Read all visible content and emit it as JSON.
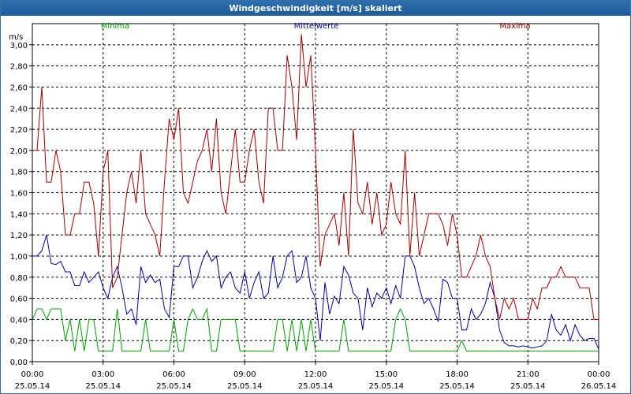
{
  "window": {
    "title": "Windgeschwindigkeit [m/s] skaliert"
  },
  "chart_data": {
    "type": "line",
    "ylabel": "m/s",
    "ylim": [
      0,
      3.2
    ],
    "y_ticks": [
      "0,00",
      "0,20",
      "0,40",
      "0,60",
      "0,80",
      "1,00",
      "1,20",
      "1,40",
      "1,60",
      "1,80",
      "2,00",
      "2,20",
      "2,40",
      "2,60",
      "2,80",
      "3,00"
    ],
    "x_range_hours": [
      0,
      24
    ],
    "x_ticks": [
      {
        "time": "00:00",
        "date": "25.05.14"
      },
      {
        "time": "03:00",
        "date": "25.05.14"
      },
      {
        "time": "06:00",
        "date": "25.05.14"
      },
      {
        "time": "09:00",
        "date": "25.05.14"
      },
      {
        "time": "12:00",
        "date": "25.05.14"
      },
      {
        "time": "15:00",
        "date": "25.05.14"
      },
      {
        "time": "18:00",
        "date": "25.05.14"
      },
      {
        "time": "21:00",
        "date": "25.05.14"
      },
      {
        "time": "00:00",
        "date": "26.05.14"
      }
    ],
    "grid": true,
    "legend_position": "top",
    "series": [
      {
        "name": "Minima",
        "color": "#00a000",
        "x": [
          0,
          0.2,
          0.4,
          0.6,
          0.8,
          1.0,
          1.2,
          1.4,
          1.6,
          1.8,
          2.0,
          2.2,
          2.4,
          2.6,
          2.8,
          3.0,
          3.2,
          3.4,
          3.6,
          3.8,
          4.0,
          4.2,
          4.4,
          4.6,
          4.8,
          5.0,
          5.2,
          5.4,
          5.6,
          5.8,
          6.0,
          6.2,
          6.4,
          6.6,
          6.8,
          7.0,
          7.2,
          7.4,
          7.6,
          7.8,
          8.0,
          8.2,
          8.4,
          8.6,
          8.8,
          9.0,
          9.2,
          9.4,
          9.6,
          9.8,
          10.0,
          10.2,
          10.4,
          10.6,
          10.8,
          11.0,
          11.2,
          11.4,
          11.6,
          11.8,
          12.0,
          12.2,
          12.4,
          12.6,
          12.8,
          13.0,
          13.2,
          13.4,
          13.6,
          13.8,
          14.0,
          14.2,
          14.4,
          14.6,
          14.8,
          15.0,
          15.2,
          15.4,
          15.6,
          15.8,
          16.0,
          16.2,
          16.4,
          16.6,
          16.8,
          17.0,
          17.2,
          17.4,
          17.6,
          17.8,
          18.0,
          18.2,
          18.4,
          18.6,
          18.8,
          19.0,
          19.2,
          19.4,
          19.6,
          19.8,
          20.0,
          20.2,
          20.4,
          20.6,
          20.8,
          21.0,
          21.2,
          21.4,
          21.6,
          21.8,
          22.0,
          22.2,
          22.4,
          22.6,
          22.8,
          23.0,
          23.2,
          23.4,
          23.6,
          23.8,
          24.0
        ],
        "y": [
          0.4,
          0.5,
          0.5,
          0.4,
          0.5,
          0.5,
          0.5,
          0.2,
          0.4,
          0.1,
          0.4,
          0.1,
          0.4,
          0.4,
          0.1,
          0.1,
          0.1,
          0.1,
          0.5,
          0.1,
          0.1,
          0.1,
          0.1,
          0.1,
          0.4,
          0.1,
          0.1,
          0.1,
          0.1,
          0.1,
          0.4,
          0.1,
          0.1,
          0.4,
          0.5,
          0.4,
          0.4,
          0.5,
          0.1,
          0.1,
          0.4,
          0.4,
          0.4,
          0.4,
          0.1,
          0.1,
          0.1,
          0.1,
          0.1,
          0.1,
          0.1,
          0.1,
          0.4,
          0.4,
          0.1,
          0.4,
          0.1,
          0.4,
          0.1,
          0.4,
          0.1,
          0.1,
          0.1,
          0.1,
          0.1,
          0.1,
          0.4,
          0.1,
          0.1,
          0.1,
          0.1,
          0.1,
          0.1,
          0.1,
          0.1,
          0.1,
          0.1,
          0.4,
          0.5,
          0.4,
          0.1,
          0.1,
          0.1,
          0.1,
          0.1,
          0.1,
          0.1,
          0.1,
          0.1,
          0.1,
          0.1,
          0.2,
          0.1,
          0.1,
          0.1,
          0.1,
          0.1,
          0.1,
          0.1,
          0.1,
          0.1,
          0.1,
          0.1,
          0.1,
          0.1,
          0.1,
          0.1,
          0.1,
          0.1,
          0.1,
          0.1,
          0.1,
          0.1,
          0.1,
          0.1,
          0.1,
          0.1,
          0.1,
          0.1,
          0.1,
          0.1
        ]
      },
      {
        "name": "Mittelwerte",
        "color": "#00009c",
        "x": [
          0,
          0.2,
          0.4,
          0.6,
          0.8,
          1.0,
          1.2,
          1.4,
          1.6,
          1.8,
          2.0,
          2.2,
          2.4,
          2.6,
          2.8,
          3.0,
          3.2,
          3.4,
          3.6,
          3.8,
          4.0,
          4.2,
          4.4,
          4.6,
          4.8,
          5.0,
          5.2,
          5.4,
          5.6,
          5.8,
          6.0,
          6.2,
          6.4,
          6.6,
          6.8,
          7.0,
          7.2,
          7.4,
          7.6,
          7.8,
          8.0,
          8.2,
          8.4,
          8.6,
          8.8,
          9.0,
          9.2,
          9.4,
          9.6,
          9.8,
          10.0,
          10.2,
          10.4,
          10.6,
          10.8,
          11.0,
          11.2,
          11.4,
          11.6,
          11.8,
          12.0,
          12.2,
          12.4,
          12.6,
          12.8,
          13.0,
          13.2,
          13.4,
          13.6,
          13.8,
          14.0,
          14.2,
          14.4,
          14.6,
          14.8,
          15.0,
          15.2,
          15.4,
          15.6,
          15.8,
          16.0,
          16.2,
          16.4,
          16.6,
          16.8,
          17.0,
          17.2,
          17.4,
          17.6,
          17.8,
          18.0,
          18.2,
          18.4,
          18.6,
          18.8,
          19.0,
          19.2,
          19.4,
          19.6,
          19.8,
          20.0,
          20.2,
          20.4,
          20.6,
          20.8,
          21.0,
          21.2,
          21.4,
          21.6,
          21.8,
          22.0,
          22.2,
          22.4,
          22.6,
          22.8,
          23.0,
          23.2,
          23.4,
          23.6,
          23.8,
          24.0
        ],
        "y": [
          1.0,
          1.0,
          1.05,
          1.2,
          0.93,
          0.92,
          0.95,
          0.85,
          0.85,
          0.72,
          0.72,
          0.85,
          0.75,
          0.8,
          0.85,
          0.7,
          0.6,
          0.8,
          0.9,
          0.7,
          0.45,
          0.5,
          0.35,
          0.9,
          0.75,
          0.82,
          0.75,
          0.78,
          0.5,
          0.42,
          0.9,
          0.9,
          1.0,
          1.0,
          0.7,
          0.8,
          0.95,
          1.05,
          0.95,
          1.0,
          0.7,
          0.8,
          0.85,
          0.7,
          0.65,
          0.85,
          0.6,
          0.75,
          0.85,
          0.6,
          0.65,
          1.0,
          0.7,
          0.8,
          1.0,
          1.05,
          0.75,
          0.8,
          1.0,
          0.7,
          0.6,
          0.2,
          0.75,
          0.45,
          0.62,
          0.55,
          0.9,
          0.82,
          0.65,
          0.6,
          0.3,
          0.7,
          0.52,
          0.65,
          0.6,
          0.7,
          0.55,
          0.72,
          0.6,
          1.0,
          1.0,
          0.9,
          0.7,
          0.55,
          0.6,
          0.5,
          0.38,
          0.78,
          0.75,
          0.6,
          0.6,
          0.3,
          0.3,
          0.5,
          0.4,
          0.45,
          0.55,
          0.75,
          0.6,
          0.3,
          0.18,
          0.15,
          0.15,
          0.14,
          0.15,
          0.14,
          0.13,
          0.14,
          0.15,
          0.2,
          0.45,
          0.3,
          0.25,
          0.35,
          0.2,
          0.35,
          0.25,
          0.2,
          0.22,
          0.22,
          0.12
        ]
      },
      {
        "name": "Maxima",
        "color": "#a00000",
        "x": [
          0,
          0.2,
          0.4,
          0.6,
          0.8,
          1.0,
          1.2,
          1.4,
          1.6,
          1.8,
          2.0,
          2.2,
          2.4,
          2.6,
          2.8,
          3.0,
          3.2,
          3.4,
          3.6,
          3.8,
          4.0,
          4.2,
          4.4,
          4.6,
          4.8,
          5.0,
          5.2,
          5.4,
          5.6,
          5.8,
          6.0,
          6.2,
          6.4,
          6.6,
          6.8,
          7.0,
          7.2,
          7.4,
          7.6,
          7.8,
          8.0,
          8.2,
          8.4,
          8.6,
          8.8,
          9.0,
          9.2,
          9.4,
          9.6,
          9.8,
          10.0,
          10.2,
          10.4,
          10.6,
          10.8,
          11.0,
          11.2,
          11.4,
          11.6,
          11.8,
          12.0,
          12.2,
          12.4,
          12.6,
          12.8,
          13.0,
          13.2,
          13.4,
          13.6,
          13.8,
          14.0,
          14.2,
          14.4,
          14.6,
          14.8,
          15.0,
          15.2,
          15.4,
          15.6,
          15.8,
          16.0,
          16.2,
          16.4,
          16.6,
          16.8,
          17.0,
          17.2,
          17.4,
          17.6,
          17.8,
          18.0,
          18.2,
          18.4,
          18.6,
          18.8,
          19.0,
          19.2,
          19.4,
          19.6,
          19.8,
          20.0,
          20.2,
          20.4,
          20.6,
          20.8,
          21.0,
          21.2,
          21.4,
          21.6,
          21.8,
          22.0,
          22.2,
          22.4,
          22.6,
          22.8,
          23.0,
          23.2,
          23.4,
          23.6,
          23.8,
          24.0
        ],
        "y": [
          2.0,
          2.0,
          2.6,
          1.7,
          1.7,
          2.0,
          1.8,
          1.2,
          1.2,
          1.4,
          1.4,
          1.7,
          1.7,
          1.5,
          1.0,
          1.8,
          2.0,
          0.7,
          0.8,
          1.2,
          1.6,
          1.8,
          1.5,
          2.0,
          1.4,
          1.3,
          1.2,
          1.0,
          1.7,
          2.3,
          2.1,
          2.4,
          1.6,
          1.5,
          1.7,
          1.9,
          2.0,
          2.2,
          1.8,
          2.3,
          1.6,
          1.4,
          1.8,
          2.2,
          1.7,
          1.7,
          2.0,
          2.2,
          1.7,
          1.5,
          2.4,
          2.4,
          2.0,
          2.0,
          2.9,
          2.6,
          2.1,
          3.1,
          2.6,
          2.9,
          2.0,
          0.9,
          1.2,
          1.3,
          1.4,
          1.1,
          1.6,
          1.0,
          2.2,
          1.5,
          1.4,
          1.7,
          1.3,
          1.6,
          1.2,
          1.3,
          1.7,
          1.4,
          1.3,
          2.0,
          1.0,
          1.6,
          1.0,
          1.2,
          1.4,
          1.4,
          1.4,
          1.3,
          1.1,
          1.4,
          1.2,
          0.8,
          0.8,
          0.9,
          1.0,
          1.2,
          1.0,
          0.9,
          0.6,
          0.4,
          0.6,
          0.5,
          0.6,
          0.4,
          0.4,
          0.4,
          0.6,
          0.5,
          0.7,
          0.7,
          0.8,
          0.8,
          0.9,
          0.8,
          0.8,
          0.8,
          0.7,
          0.7,
          0.7,
          0.4,
          0.4
        ]
      }
    ]
  }
}
